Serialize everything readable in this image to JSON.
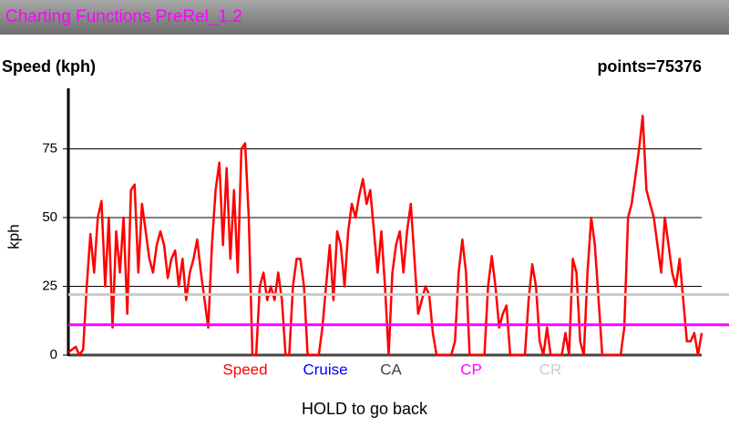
{
  "app_title": "Charting Functions PreRel_1.2",
  "chart_data": {
    "type": "line",
    "title": "Speed (kph)",
    "annotation": "points=75376",
    "ylabel": "kph",
    "ylim": [
      0,
      97
    ],
    "yticks": [
      0,
      25,
      50,
      75
    ],
    "grid": true,
    "series": [
      {
        "name": "Speed",
        "color": "#ff0000",
        "values": [
          1,
          2,
          3,
          0,
          2,
          25,
          44,
          30,
          50,
          56,
          25,
          50,
          10,
          45,
          30,
          50,
          15,
          60,
          62,
          30,
          55,
          45,
          35,
          30,
          40,
          45,
          40,
          28,
          35,
          38,
          25,
          35,
          20,
          30,
          35,
          42,
          30,
          20,
          10,
          40,
          60,
          70,
          40,
          68,
          35,
          60,
          30,
          75,
          77,
          50,
          0,
          0,
          25,
          30,
          20,
          25,
          20,
          30,
          20,
          0,
          0,
          25,
          35,
          35,
          25,
          0,
          0,
          0,
          0,
          10,
          25,
          40,
          20,
          45,
          40,
          25,
          45,
          55,
          50,
          58,
          64,
          55,
          60,
          45,
          30,
          45,
          25,
          0,
          30,
          40,
          45,
          30,
          45,
          55,
          35,
          15,
          20,
          25,
          22,
          8,
          0,
          0,
          0,
          0,
          0,
          5,
          30,
          42,
          30,
          0,
          0,
          0,
          0,
          0,
          25,
          36,
          25,
          10,
          15,
          18,
          0,
          0,
          0,
          0,
          0,
          20,
          33,
          25,
          5,
          0,
          10,
          0,
          0,
          0,
          0,
          8,
          0,
          35,
          30,
          5,
          0,
          30,
          50,
          40,
          20,
          0,
          0,
          0,
          0,
          0,
          0,
          10,
          50,
          55,
          65,
          75,
          87,
          60,
          55,
          50,
          40,
          30,
          50,
          40,
          30,
          25,
          35,
          20,
          5,
          5,
          8,
          0,
          8
        ]
      },
      {
        "name": "Cruise",
        "color": "#0000ff"
      },
      {
        "name": "CA",
        "color": "#444444"
      },
      {
        "name": "CP",
        "color": "#ff00ff",
        "value": 11
      },
      {
        "name": "CR",
        "color": "#cccccc",
        "value": 22
      }
    ]
  },
  "footer": "HOLD to go back"
}
